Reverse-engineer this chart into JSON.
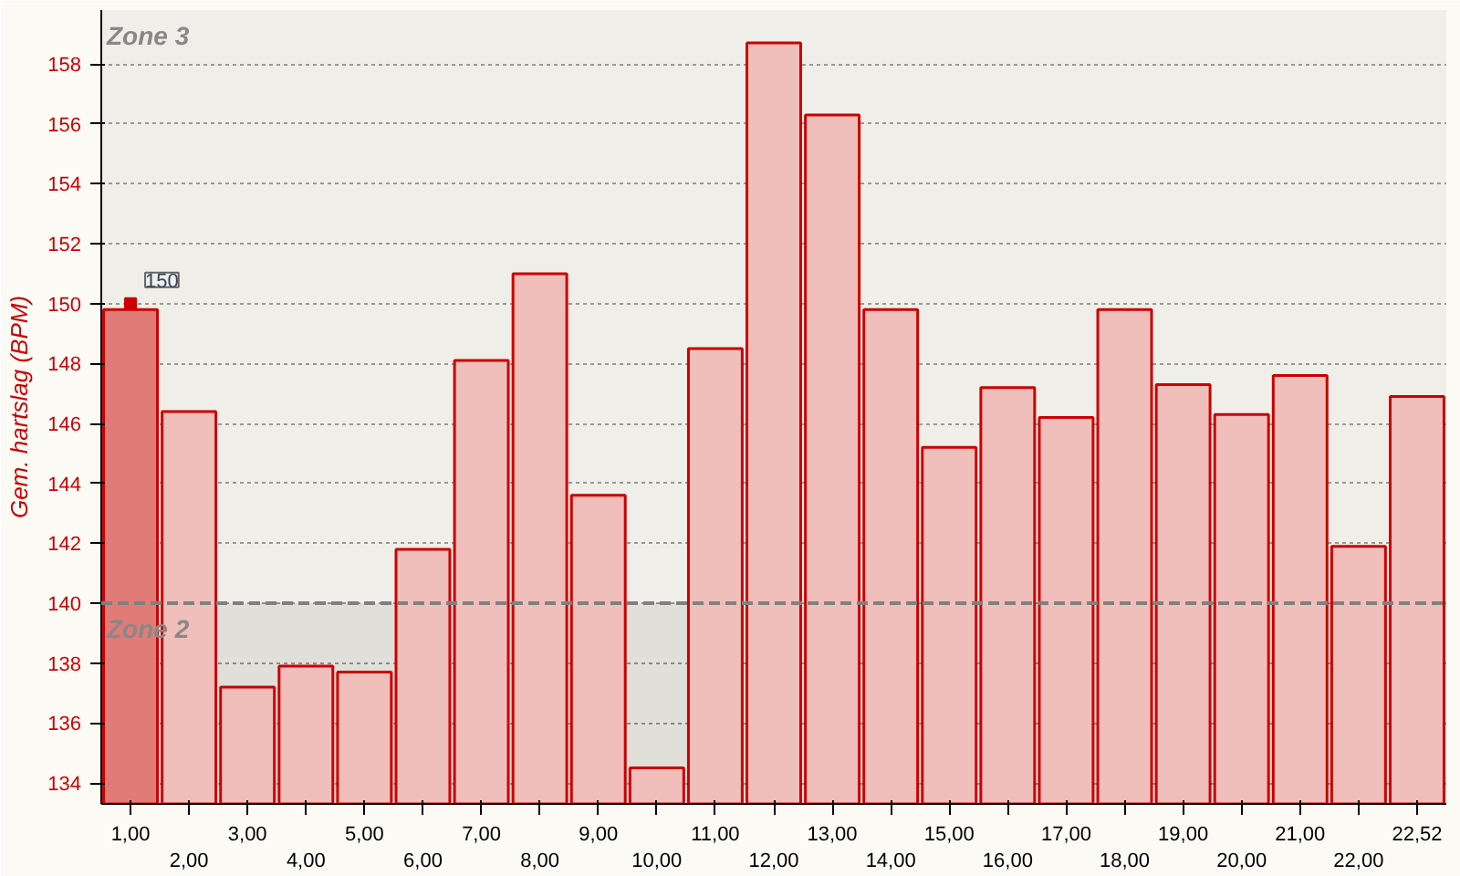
{
  "chart_data": {
    "type": "bar",
    "ylabel": "Gem. hartslag (BPM)",
    "categories": [
      "1,00",
      "2,00",
      "3,00",
      "4,00",
      "5,00",
      "6,00",
      "7,00",
      "8,00",
      "9,00",
      "10,00",
      "11,00",
      "12,00",
      "13,00",
      "14,00",
      "15,00",
      "16,00",
      "17,00",
      "18,00",
      "19,00",
      "20,00",
      "21,00",
      "22,00",
      "22,52"
    ],
    "values": [
      149.8,
      146.4,
      137.2,
      137.9,
      137.7,
      141.8,
      148.1,
      151.0,
      143.6,
      134.5,
      148.5,
      158.7,
      156.3,
      149.8,
      145.2,
      147.2,
      146.2,
      149.8,
      147.3,
      146.3,
      147.6,
      141.9,
      146.9
    ],
    "colors": [
      "#e07b78",
      "#f0bebb",
      "#f0bebb",
      "#f0bebb",
      "#f0bebb",
      "#f0bebb",
      "#f0bebb",
      "#f0bebb",
      "#f0bebb",
      "#f0bebb",
      "#f0bebb",
      "#f0bebb",
      "#f0bebb",
      "#f0bebb",
      "#f0bebb",
      "#f0bebb",
      "#f0bebb",
      "#f0bebb",
      "#f0bebb",
      "#f0bebb",
      "#f0bebb",
      "#f0bebb",
      "#f0bebb"
    ],
    "ylim": [
      133.3,
      159.8
    ],
    "yticks": [
      134,
      136,
      138,
      140,
      142,
      144,
      146,
      148,
      150,
      152,
      154,
      156,
      158
    ],
    "grid": "y",
    "bands": [
      {
        "axis": "y",
        "from": 140,
        "to": 159.8,
        "label": "Zone 3",
        "color": "#dcd8d0"
      },
      {
        "axis": "y",
        "from": 133.3,
        "to": 140,
        "label": "Zone 2",
        "color": "#b0aca6"
      }
    ],
    "ref_lines": [
      {
        "axis": "y",
        "value": 140,
        "color": "#808080",
        "line_style": "dashed"
      }
    ],
    "annotations": [
      {
        "text": "150",
        "x": "1,00",
        "y": 150
      }
    ]
  }
}
